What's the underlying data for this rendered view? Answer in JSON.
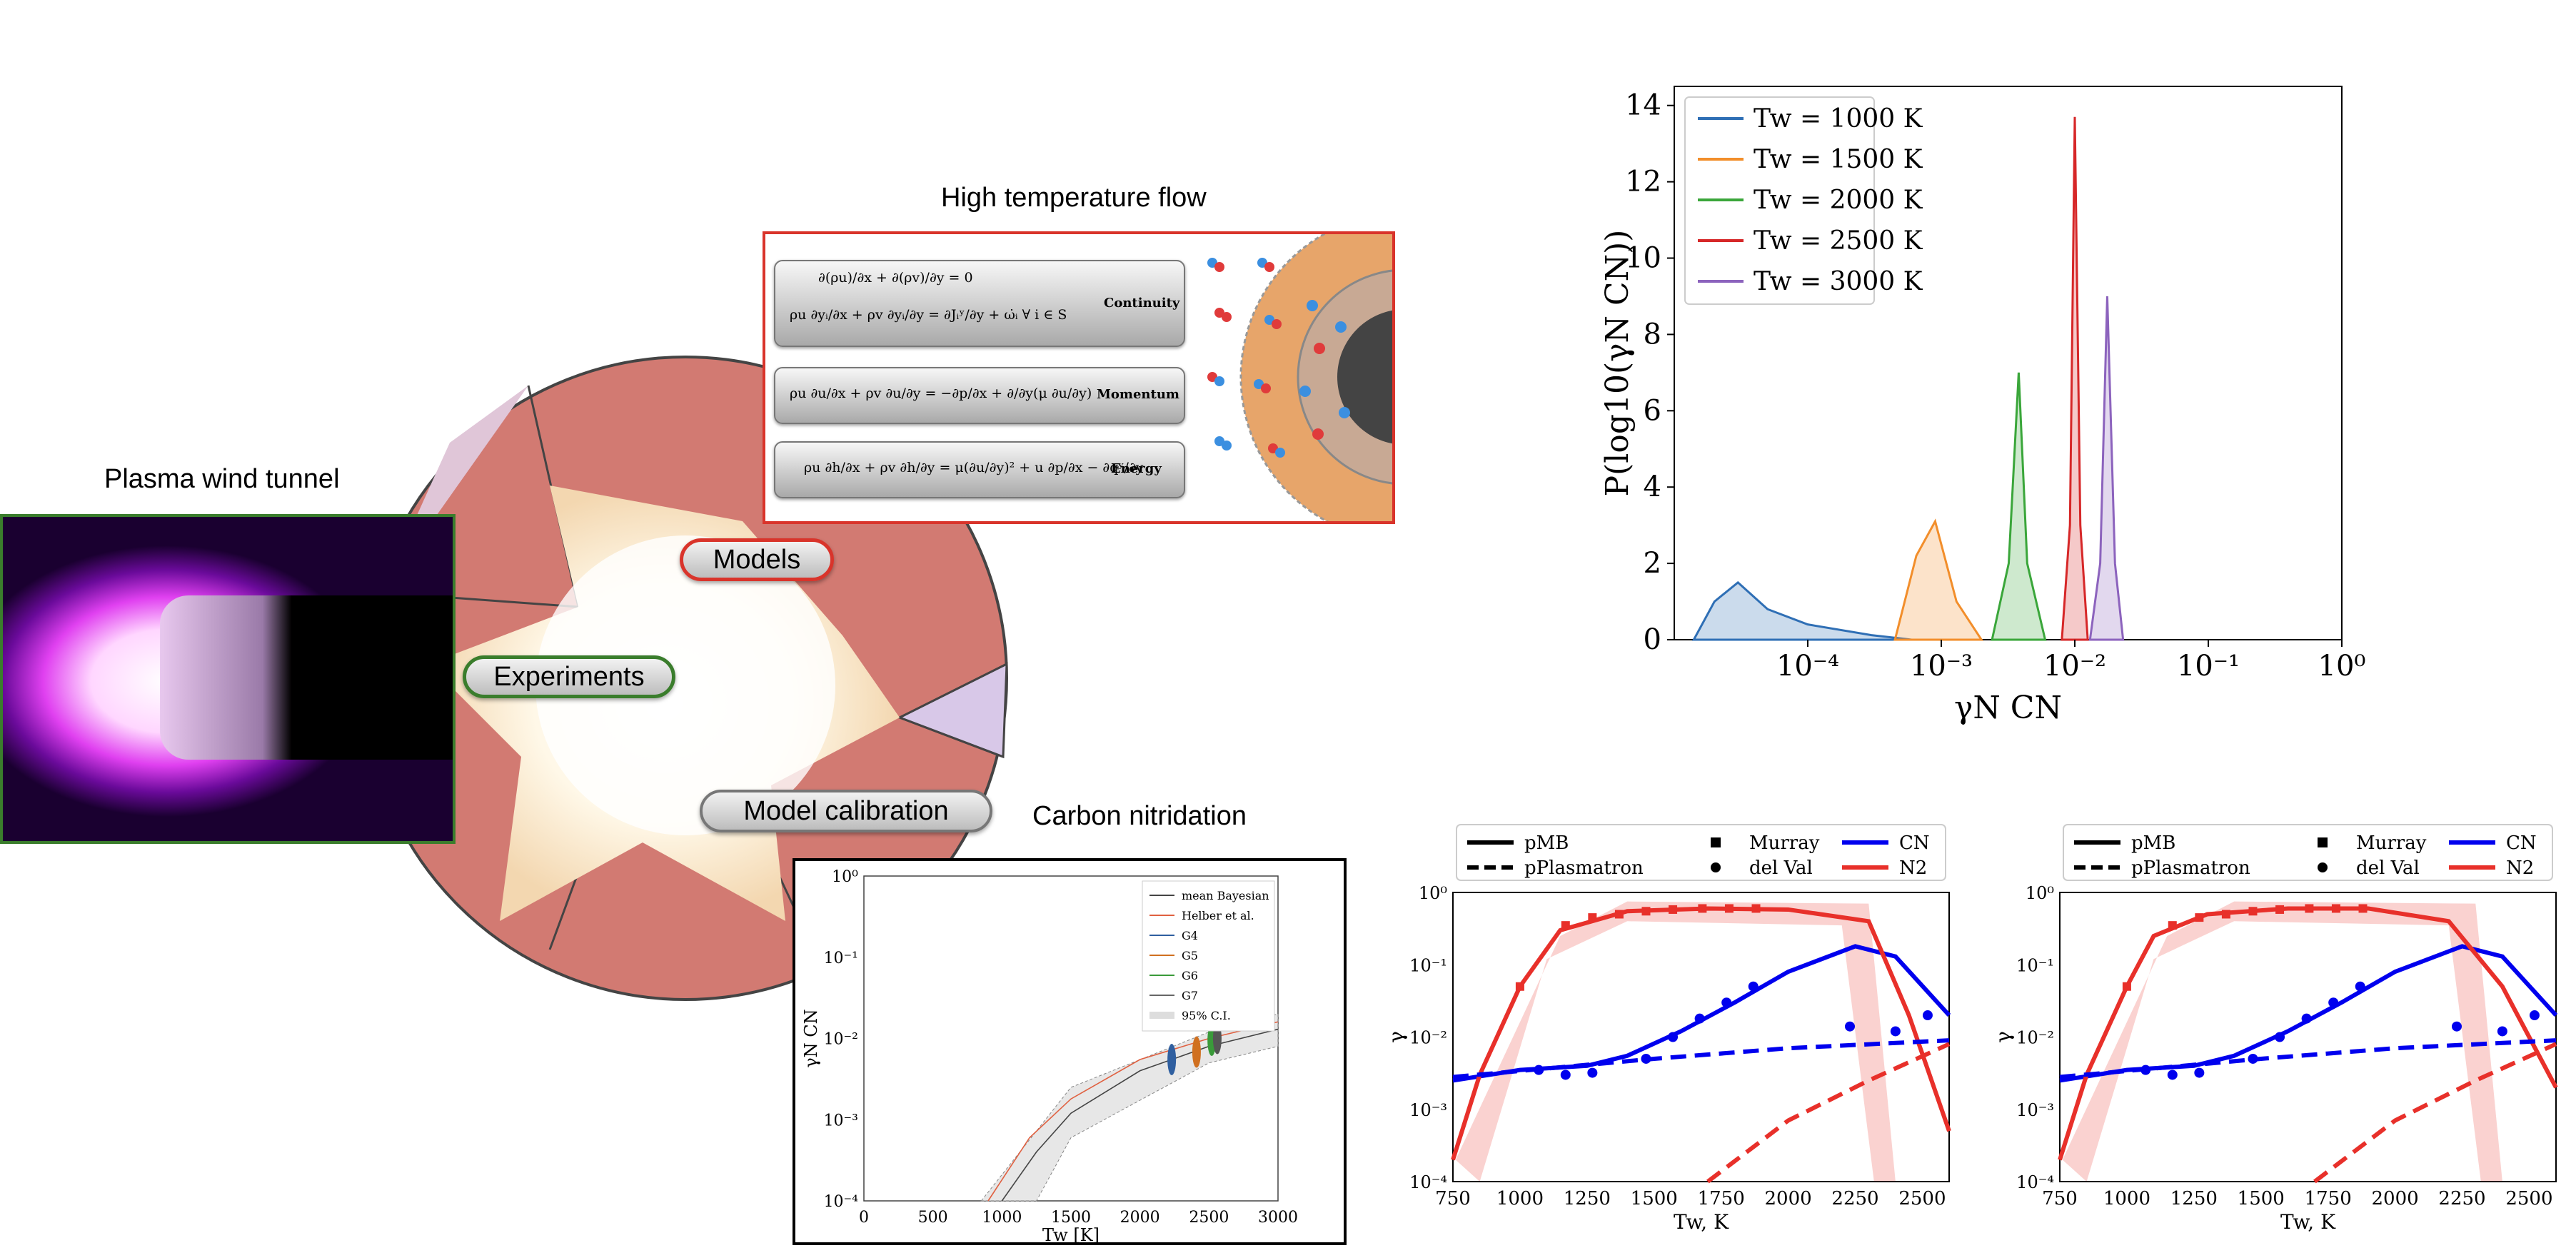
{
  "titles": {
    "plasma": "Plasma wind tunnel",
    "flow": "High temperature flow",
    "carbon": "Carbon nitridation"
  },
  "pills": {
    "models": "Models",
    "experiments": "Experiments",
    "calibration": "Model calibration"
  },
  "equations": {
    "continuity_label": "Continuity",
    "momentum_label": "Momentum",
    "energy_label": "Energy"
  },
  "colors": {
    "t1000": "#2f6fb5",
    "t1500": "#f28e2b",
    "t2000": "#3aa63a",
    "t2500": "#d62728",
    "t3000": "#8c63bd",
    "cn": "#0000ee",
    "n2": "#e8302a"
  },
  "chart_data": [
    {
      "type": "area",
      "xlabel": "γN CN",
      "ylabel": "P(log10(γN CN))",
      "xscale": "log",
      "xlim": [
        1e-05,
        1
      ],
      "ylim": [
        0,
        14.5
      ],
      "xticks": [
        "10⁻⁴",
        "10⁻³",
        "10⁻²",
        "10⁻¹",
        "10⁰"
      ],
      "yticks": [
        "0",
        "2",
        "4",
        "6",
        "8",
        "10",
        "12",
        "14"
      ],
      "legend_position": "top-left",
      "series": [
        {
          "name": "Tw = 1000 K",
          "x": [
            1.4e-05,
            2e-05,
            3e-05,
            5e-05,
            0.0001,
            0.0003,
            0.0006
          ],
          "y": [
            0,
            1.0,
            1.5,
            0.8,
            0.4,
            0.12,
            0
          ]
        },
        {
          "name": "Tw = 1500 K",
          "x": [
            0.00045,
            0.00065,
            0.0009,
            0.0013,
            0.002
          ],
          "y": [
            0,
            2.2,
            3.1,
            1.0,
            0
          ]
        },
        {
          "name": "Tw = 2000 K",
          "x": [
            0.0024,
            0.0032,
            0.0038,
            0.0044,
            0.006
          ],
          "y": [
            0,
            2.0,
            7.0,
            2.0,
            0
          ]
        },
        {
          "name": "Tw = 2500 K",
          "x": [
            0.008,
            0.0092,
            0.01,
            0.011,
            0.0125
          ],
          "y": [
            0,
            3.0,
            13.7,
            3.0,
            0
          ]
        },
        {
          "name": "Tw = 3000 K",
          "x": [
            0.013,
            0.0155,
            0.0175,
            0.02,
            0.023
          ],
          "y": [
            0,
            2.0,
            9.0,
            2.0,
            0
          ]
        }
      ]
    },
    {
      "type": "line",
      "xlabel": "Tw [K]",
      "ylabel": "γN CN",
      "yscale": "log",
      "xlim": [
        0,
        3000
      ],
      "ylim": [
        0.0001,
        1
      ],
      "xticks": [
        "0",
        "500",
        "1000",
        "1500",
        "2000",
        "2500",
        "3000"
      ],
      "yticks": [
        "10⁰",
        "10⁻¹",
        "10⁻²",
        "10⁻³",
        "10⁻⁴"
      ],
      "legend": [
        "mean Bayesian",
        "Helber et al.",
        "G4",
        "G5",
        "G6",
        "G7",
        "95% C.I."
      ],
      "series": [
        {
          "name": "mean Bayesian",
          "x": [
            1000,
            1250,
            1500,
            2000,
            2500,
            3000
          ],
          "y": [
            0.0001,
            0.0004,
            0.0012,
            0.004,
            0.008,
            0.013
          ]
        },
        {
          "name": "Helber et al.",
          "x": [
            900,
            1200,
            1500,
            2000,
            2500,
            3000
          ],
          "y": [
            0.0001,
            0.0006,
            0.0018,
            0.0055,
            0.01,
            0.016
          ]
        }
      ]
    },
    {
      "type": "line",
      "xlabel": "Tw, K",
      "ylabel": "γ",
      "yscale": "log",
      "xlim": [
        750,
        2600
      ],
      "ylim": [
        0.0001,
        1
      ],
      "xticks": [
        "750",
        "1000",
        "1250",
        "1500",
        "1750",
        "2000",
        "2250",
        "2500"
      ],
      "yticks": [
        "10⁰",
        "10⁻¹",
        "10⁻²",
        "10⁻³",
        "10⁻⁴"
      ],
      "legend": [
        "pMB",
        "pPlasmatron",
        "Murray",
        "del Val",
        "CN",
        "N2"
      ],
      "series": [
        {
          "name": "CN",
          "x": [
            750,
            1000,
            1250,
            1400,
            1600,
            1800,
            2000,
            2250,
            2400,
            2600
          ],
          "y": [
            0.0025,
            0.0035,
            0.004,
            0.0055,
            0.012,
            0.03,
            0.08,
            0.18,
            0.13,
            0.02
          ]
        },
        {
          "name": "N2",
          "x": [
            750,
            850,
            1000,
            1150,
            1400,
            1700,
            2000,
            2300,
            2450,
            2600
          ],
          "y": [
            0.0002,
            0.003,
            0.05,
            0.3,
            0.55,
            0.6,
            0.58,
            0.4,
            0.02,
            0.0005
          ]
        }
      ]
    },
    {
      "type": "line",
      "xlabel": "Tw, K",
      "ylabel": "γ",
      "yscale": "log",
      "xlim": [
        750,
        2600
      ],
      "ylim": [
        0.0001,
        1
      ],
      "xticks": [
        "750",
        "1000",
        "1250",
        "1500",
        "1750",
        "2000",
        "2250",
        "2500"
      ],
      "yticks": [
        "10⁰",
        "10⁻¹",
        "10⁻²",
        "10⁻³",
        "10⁻⁴"
      ],
      "legend": [
        "pMB",
        "pPlasmatron",
        "Murray",
        "del Val",
        "CN",
        "N2"
      ],
      "series": [
        {
          "name": "CN",
          "x": [
            750,
            1000,
            1250,
            1400,
            1600,
            1800,
            2000,
            2250,
            2400,
            2600
          ],
          "y": [
            0.0025,
            0.0035,
            0.004,
            0.0055,
            0.012,
            0.03,
            0.08,
            0.18,
            0.13,
            0.02
          ]
        },
        {
          "name": "N2",
          "x": [
            750,
            850,
            1000,
            1100,
            1300,
            1600,
            1900,
            2200,
            2400,
            2600
          ],
          "y": [
            0.0002,
            0.003,
            0.05,
            0.25,
            0.5,
            0.6,
            0.6,
            0.4,
            0.05,
            0.002
          ]
        }
      ]
    }
  ]
}
